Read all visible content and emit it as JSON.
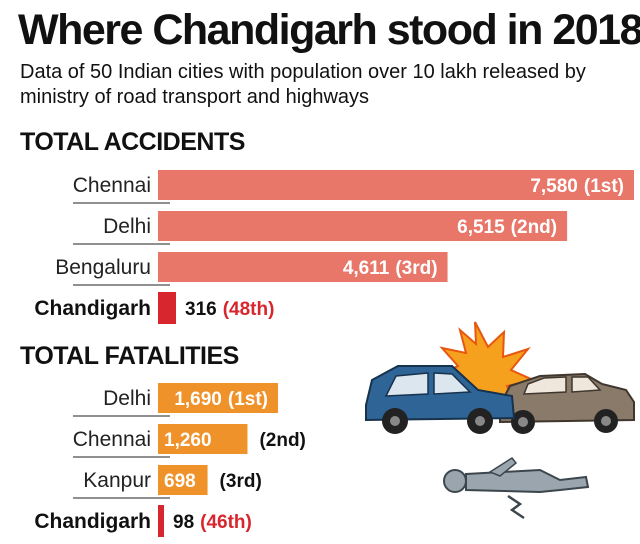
{
  "title": "Where Chandigarh stood in 2018",
  "subtitle": "Data of 50 Indian cities with population over 10 lakh released by ministry of road transport and highways",
  "colors": {
    "accidents_bar": "#e8776a",
    "fatalities_bar": "#f0922a",
    "chandigarh_bar": "#d7262d",
    "chandigarh_rank": "#d7262d"
  },
  "illustration": {
    "icons": [
      "car-crash-icon",
      "injured-person-icon"
    ]
  },
  "chart_data": [
    {
      "type": "bar",
      "title": "TOTAL ACCIDENTS",
      "categories": [
        "Chennai",
        "Delhi",
        "Bengaluru",
        "Chandigarh"
      ],
      "values": [
        7580,
        6515,
        4611,
        316
      ],
      "value_labels": [
        "7,580",
        "6,515",
        "4,611",
        "316"
      ],
      "ranks": [
        "(1st)",
        "(2nd)",
        "(3rd)",
        "(48th)"
      ],
      "highlight": "Chandigarh"
    },
    {
      "type": "bar",
      "title": "TOTAL FATALITIES",
      "categories": [
        "Delhi",
        "Chennai",
        "Kanpur",
        "Chandigarh"
      ],
      "values": [
        1690,
        1260,
        698,
        98
      ],
      "value_labels": [
        "1,690",
        "1,260",
        "698",
        "98"
      ],
      "ranks": [
        "(1st)",
        "(2nd)",
        "(3rd)",
        "(46th)"
      ],
      "highlight": "Chandigarh"
    }
  ]
}
